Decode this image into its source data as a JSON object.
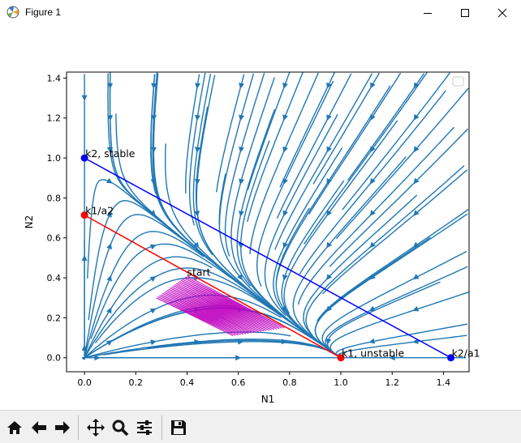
{
  "window": {
    "title": "Figure 1"
  },
  "toolbar": {
    "items": [
      {
        "name": "home-icon"
      },
      {
        "name": "back-arrow-icon"
      },
      {
        "name": "forward-arrow-icon"
      },
      {
        "name": "pan-icon"
      },
      {
        "name": "zoom-icon"
      },
      {
        "name": "configure-subplots-icon"
      },
      {
        "name": "save-icon"
      }
    ]
  },
  "chart_data": {
    "type": "line",
    "title": "",
    "xlabel": "N1",
    "ylabel": "N2",
    "xlim": [
      -0.07,
      1.5
    ],
    "ylim": [
      -0.07,
      1.43
    ],
    "xticks": [
      "0.0",
      "0.2",
      "0.4",
      "0.6",
      "0.8",
      "1.0",
      "1.2",
      "1.4"
    ],
    "yticks": [
      "0.0",
      "0.2",
      "0.4",
      "0.6",
      "0.8",
      "1.0",
      "1.2",
      "1.4"
    ],
    "grid": false,
    "legend": "upper right (empty)",
    "colors": {
      "streamplot": "#1f77b4",
      "k1_line": "#ff0000",
      "k2_line": "#0000ff",
      "trajectory": "#bf00bf"
    },
    "series": [
      {
        "color": "#ff0000",
        "x": [
          0.0,
          1.0
        ],
        "y": [
          0.714,
          0.0
        ]
      },
      {
        "color": "#0000ff",
        "x": [
          0.0,
          1.429
        ],
        "y": [
          1.0,
          0.0
        ]
      }
    ],
    "points": [
      {
        "x": 0.0,
        "y": 1.0,
        "color": "#0000ff",
        "label": "k2, stable"
      },
      {
        "x": 0.0,
        "y": 0.714,
        "color": "#ff0000",
        "label": "k1/a2"
      },
      {
        "x": 1.0,
        "y": 0.0,
        "color": "#ff0000",
        "label": "k1, unstable"
      },
      {
        "x": 1.429,
        "y": 0.0,
        "color": "#0000ff",
        "label": "k2/a1"
      }
    ],
    "annotations": [
      {
        "x": 0.4,
        "y": 0.41,
        "text": "start"
      }
    ]
  }
}
